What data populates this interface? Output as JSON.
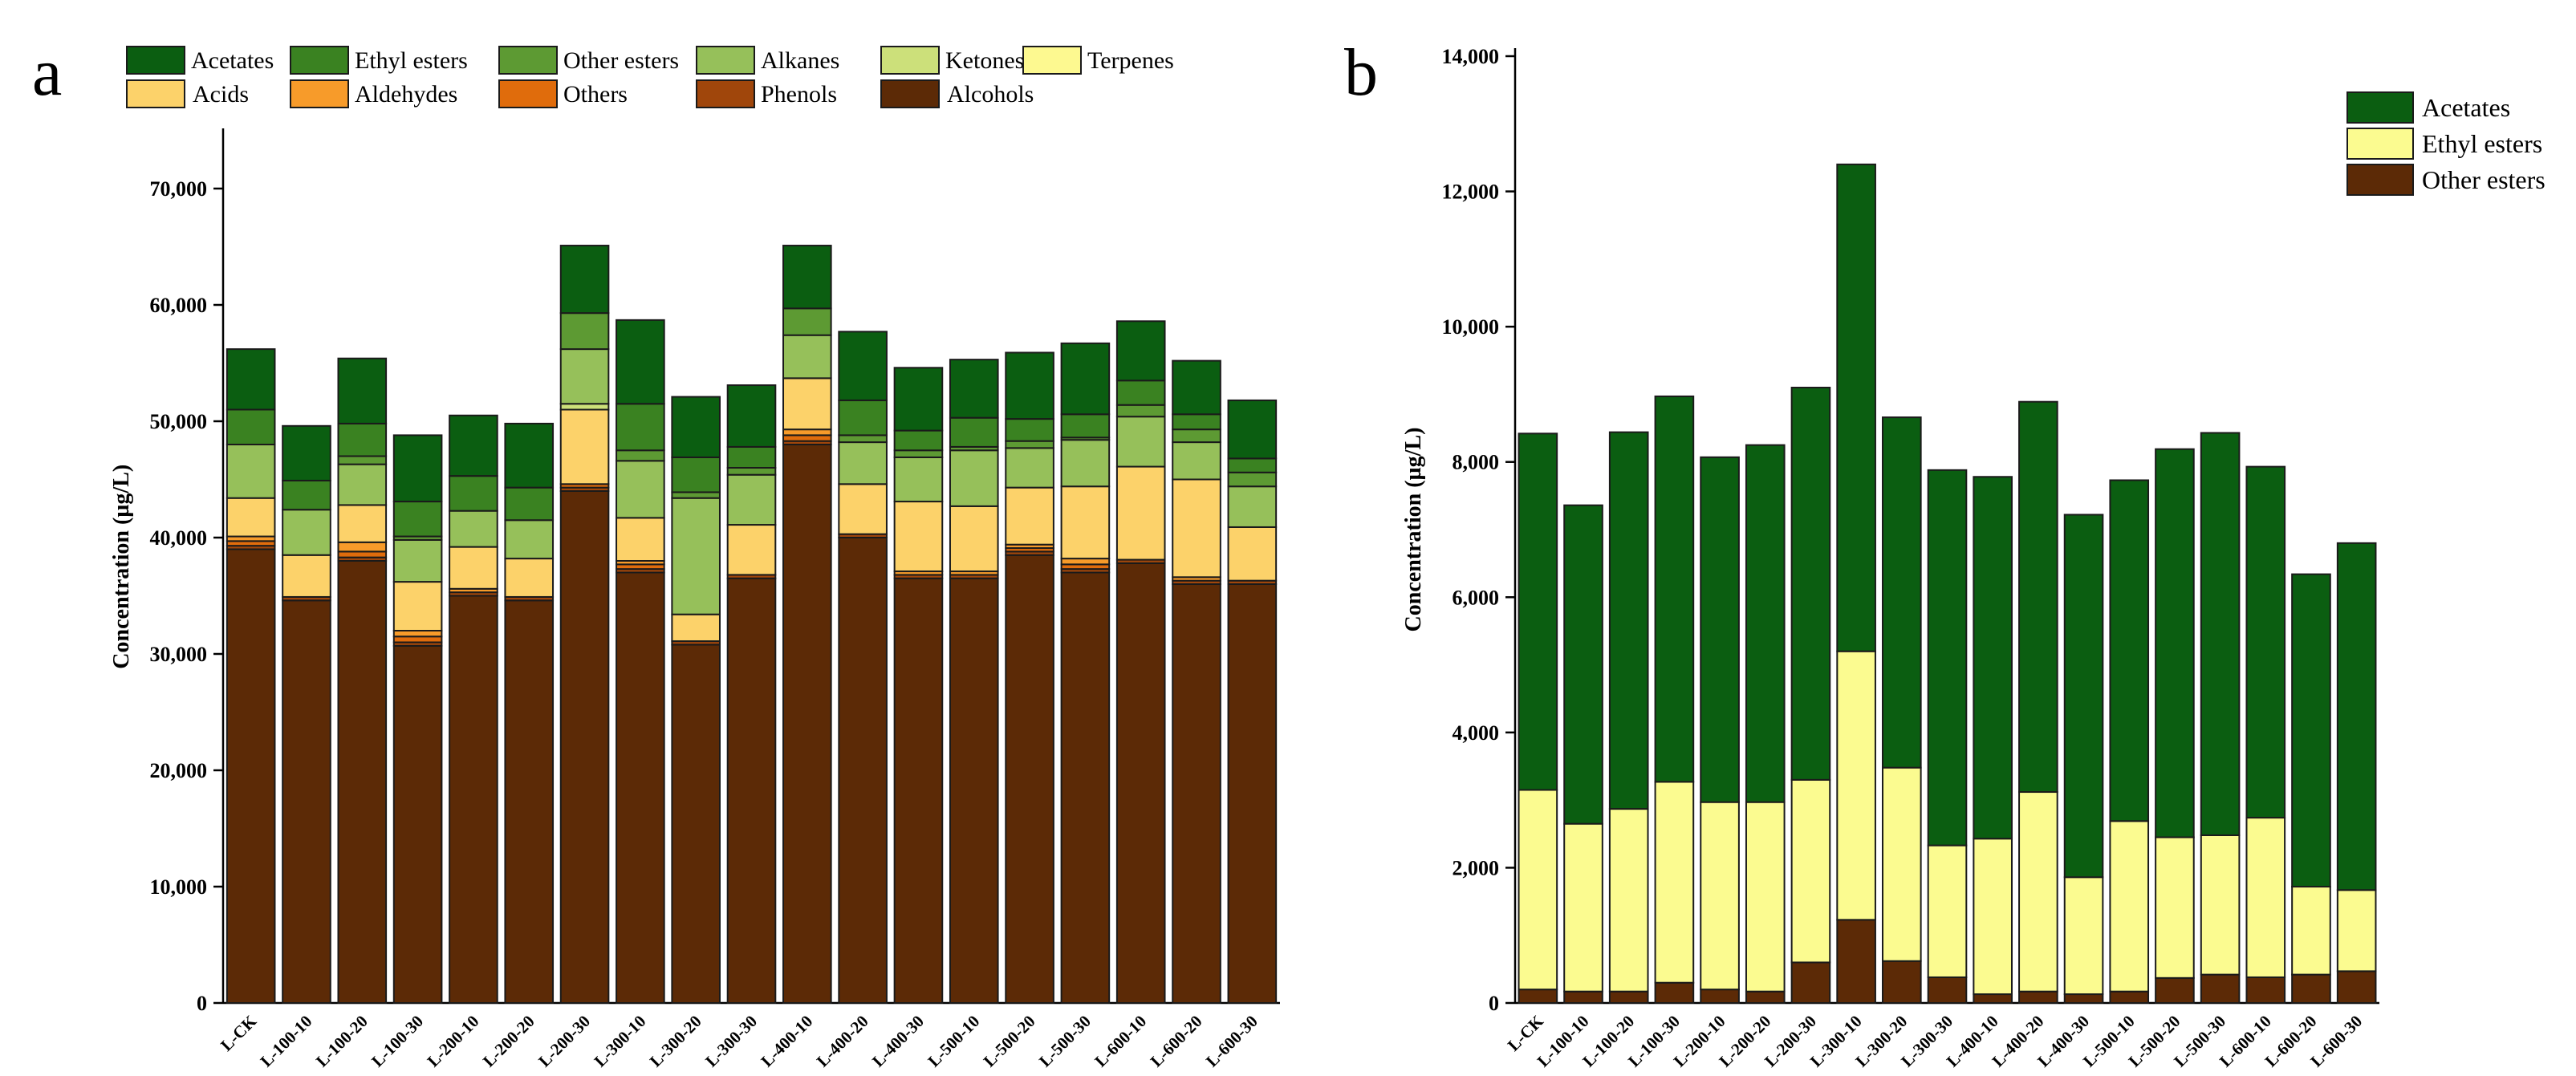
{
  "panel_labels": {
    "a": "a",
    "b": "b"
  },
  "categories": [
    "L-CK",
    "L-100-10",
    "L-100-20",
    "L-100-30",
    "L-200-10",
    "L-200-20",
    "L-200-30",
    "L-300-10",
    "L-300-20",
    "L-300-30",
    "L-400-10",
    "L-400-20",
    "L-400-30",
    "L-500-10",
    "L-500-20",
    "L-500-30",
    "L-600-10",
    "L-600-20",
    "L-600-30"
  ],
  "chart_data": [
    {
      "type": "bar",
      "stacked": true,
      "panel": "a",
      "title": "",
      "xlabel": "",
      "ylabel": "Concentration (µg/L)",
      "ylim": [
        0,
        75000
      ],
      "yticks": [
        0,
        10000,
        20000,
        30000,
        40000,
        50000,
        60000,
        70000
      ],
      "ytick_labels": [
        "0",
        "10,000",
        "20,000",
        "30,000",
        "40,000",
        "50,000",
        "60,000",
        "70,000"
      ],
      "legend_order": [
        "Acetates",
        "Ethyl esters",
        "Other esters",
        "Alkanes",
        "Ketones",
        "Terpenes",
        "Acids",
        "Aldehydes",
        "Others",
        "Phenols",
        "Alcohols"
      ],
      "series": [
        {
          "name": "Alcohols",
          "color": "#5c2a06",
          "values": [
            39000,
            34600,
            38000,
            30700,
            35000,
            34600,
            44000,
            37000,
            30800,
            36500,
            48000,
            40000,
            36500,
            36500,
            38500,
            37000,
            37800,
            36000,
            36000
          ]
        },
        {
          "name": "Phenols",
          "color": "#a0460b",
          "values": [
            300,
            300,
            300,
            300,
            300,
            300,
            300,
            300,
            300,
            300,
            300,
            300,
            300,
            300,
            300,
            300,
            300,
            300,
            300
          ]
        },
        {
          "name": "Others",
          "color": "#e06c0c",
          "values": [
            400,
            0,
            500,
            500,
            0,
            0,
            300,
            400,
            0,
            0,
            500,
            0,
            0,
            0,
            300,
            400,
            0,
            0,
            0
          ]
        },
        {
          "name": "Aldehydes",
          "color": "#f79b2a",
          "values": [
            400,
            0,
            800,
            500,
            300,
            0,
            0,
            300,
            0,
            0,
            500,
            0,
            300,
            300,
            300,
            500,
            0,
            300,
            0
          ]
        },
        {
          "name": "Acids",
          "color": "#fcd26a",
          "values": [
            3300,
            3600,
            3200,
            4200,
            3600,
            3300,
            6400,
            3700,
            2300,
            4300,
            4400,
            4300,
            6000,
            5600,
            4900,
            6200,
            8000,
            8400,
            4600
          ]
        },
        {
          "name": "Terpenes",
          "color": "#fdf990",
          "values": [
            0,
            0,
            0,
            0,
            0,
            0,
            0,
            0,
            0,
            0,
            0,
            0,
            0,
            0,
            0,
            0,
            0,
            0,
            0
          ]
        },
        {
          "name": "Ketones",
          "color": "#cce07a",
          "values": [
            0,
            0,
            0,
            0,
            0,
            0,
            500,
            0,
            0,
            0,
            0,
            0,
            0,
            0,
            0,
            0,
            0,
            0,
            0
          ]
        },
        {
          "name": "Alkanes",
          "color": "#96c05a",
          "values": [
            4600,
            3900,
            3500,
            3600,
            3100,
            3300,
            4700,
            4900,
            10000,
            4300,
            3700,
            3600,
            3800,
            4800,
            3400,
            4000,
            4300,
            3200,
            3500
          ]
        },
        {
          "name": "Other esters",
          "color": "#5d9a33",
          "values": [
            0,
            0,
            700,
            300,
            0,
            0,
            3100,
            900,
            500,
            600,
            2300,
            600,
            600,
            300,
            600,
            200,
            1000,
            1100,
            1200
          ]
        },
        {
          "name": "Ethyl esters",
          "color": "#3a8221",
          "values": [
            3000,
            2500,
            2800,
            3000,
            3000,
            2800,
            0,
            4000,
            3000,
            1800,
            0,
            3000,
            1700,
            2500,
            1900,
            2000,
            2100,
            1300,
            1200
          ]
        },
        {
          "name": "Acetates",
          "color": "#0b5e11",
          "values": [
            5200,
            4700,
            5600,
            5700,
            5200,
            5500,
            5800,
            7200,
            5200,
            5300,
            5400,
            5900,
            5400,
            5000,
            5700,
            6100,
            5100,
            4600,
            5000
          ]
        }
      ]
    },
    {
      "type": "bar",
      "stacked": true,
      "panel": "b",
      "title": "",
      "xlabel": "",
      "ylabel": "Concentration (µg/L)",
      "ylim": [
        0,
        14000
      ],
      "yticks": [
        0,
        2000,
        4000,
        6000,
        8000,
        10000,
        12000,
        14000
      ],
      "ytick_labels": [
        "0",
        "2,000",
        "4,000",
        "6,000",
        "8,000",
        "10,000",
        "12,000",
        "14,000"
      ],
      "legend_order": [
        "Acetates",
        "Ethyl esters",
        "Other esters"
      ],
      "series": [
        {
          "name": "Other esters",
          "color": "#5c2a06",
          "values": [
            200,
            170,
            170,
            300,
            200,
            170,
            600,
            1230,
            620,
            380,
            130,
            170,
            130,
            170,
            370,
            420,
            380,
            420,
            470
          ]
        },
        {
          "name": "Ethyl esters",
          "color": "#fbfb90",
          "values": [
            2950,
            2480,
            2700,
            2970,
            2770,
            2800,
            2700,
            3970,
            2860,
            1950,
            2300,
            2950,
            1730,
            2520,
            2080,
            2060,
            2360,
            1300,
            1200
          ]
        },
        {
          "name": "Acetates",
          "color": "#0b5e11",
          "values": [
            5270,
            4710,
            5570,
            5700,
            5100,
            5280,
            5800,
            7200,
            5180,
            5550,
            5350,
            5770,
            5360,
            5040,
            5740,
            5950,
            5190,
            4620,
            5130
          ]
        }
      ]
    }
  ]
}
